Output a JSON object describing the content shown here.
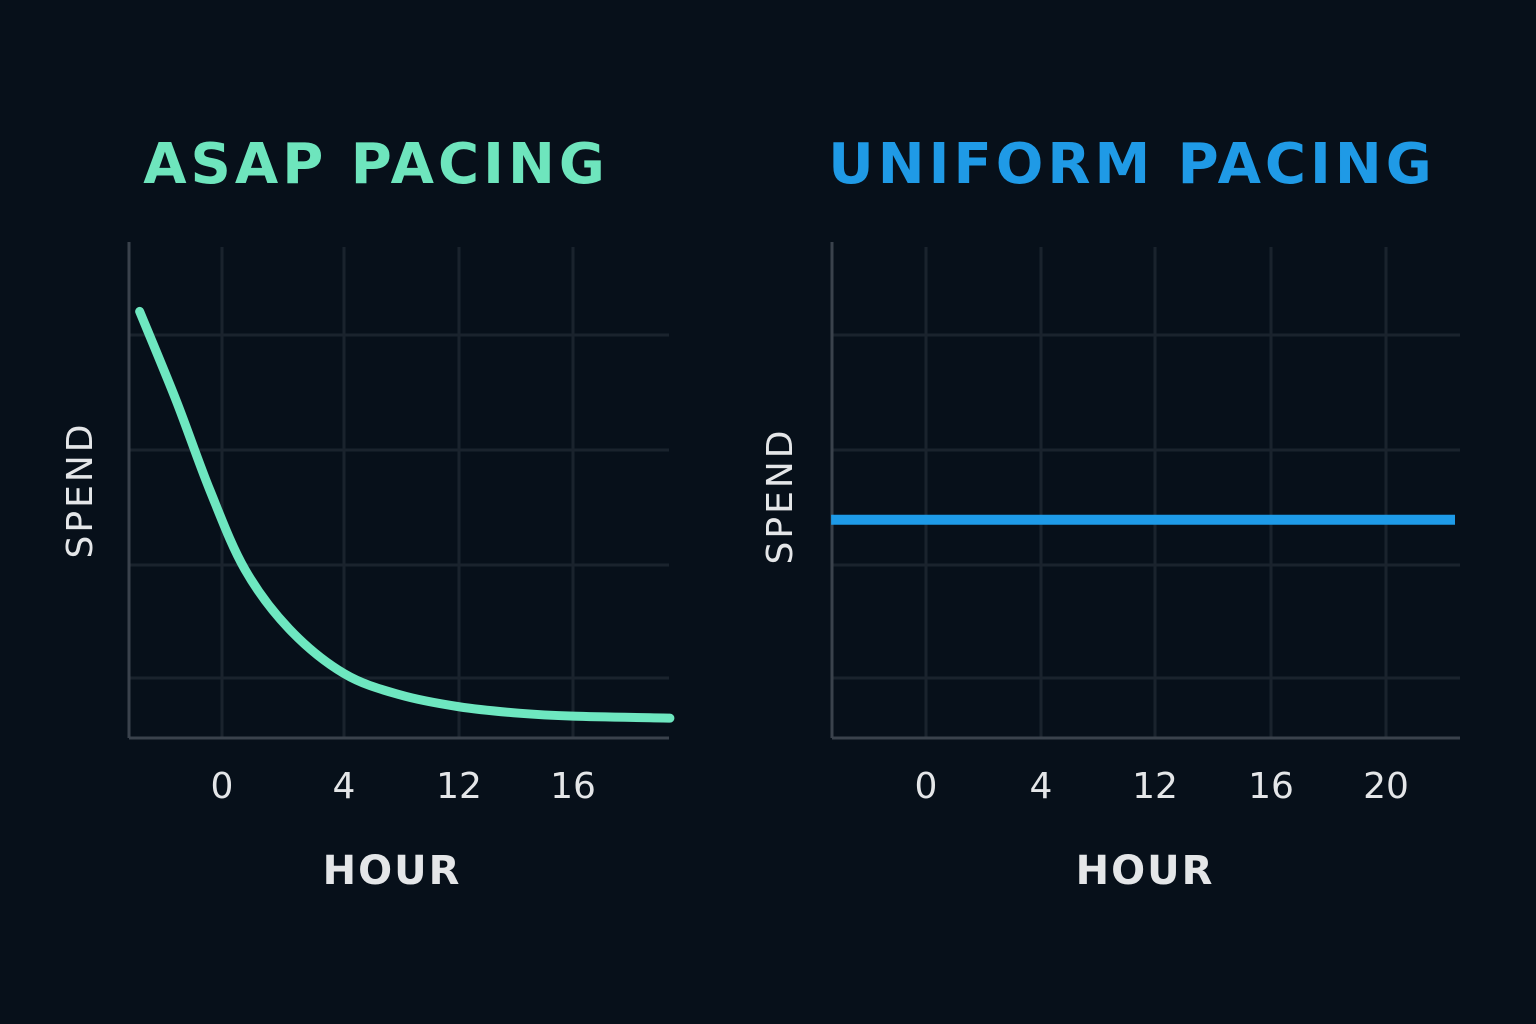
{
  "colors": {
    "background": "#07101a",
    "grid": "#1a232d",
    "axis": "#3a424c",
    "text": "#e4e6e8"
  },
  "chart_data": [
    {
      "type": "line",
      "title": "ASAP PACING",
      "title_color": "#6ee5bd",
      "xlabel": "HOUR",
      "ylabel": "SPEND",
      "xticks": [
        0,
        4,
        12,
        16
      ],
      "grid": true,
      "y_ticks_shown": false,
      "y_scale": "relative spend (0 = axis, 1 = top of plot)",
      "series": [
        {
          "color": "#6ee7c0",
          "x": [
            -2.7,
            -1.5,
            -0.4,
            0.75,
            2.2,
            4,
            7.9,
            12,
            14.1,
            16,
            19.4
          ],
          "y": [
            0.86,
            0.68,
            0.5,
            0.34,
            0.22,
            0.13,
            0.087,
            0.063,
            0.05,
            0.044,
            0.04
          ]
        }
      ]
    },
    {
      "type": "line",
      "title": "UNIFORM PACING",
      "title_color": "#1f9ae6",
      "xlabel": "HOUR",
      "ylabel": "SPEND",
      "xticks": [
        0,
        4,
        12,
        16,
        20
      ],
      "grid": true,
      "y_ticks_shown": false,
      "y_scale": "relative spend (0 = axis, 1 = top of plot)",
      "series": [
        {
          "color": "#1e9be8",
          "x": [
            -3.3,
            22.4
          ],
          "y": [
            0.44,
            0.44
          ]
        }
      ]
    }
  ]
}
